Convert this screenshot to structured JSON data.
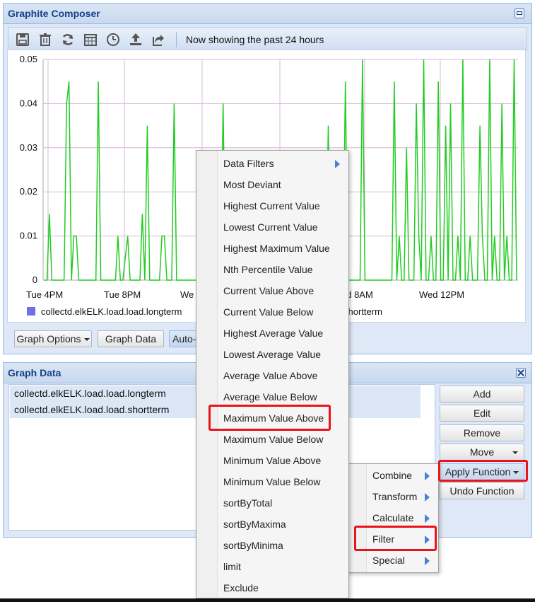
{
  "composer": {
    "title": "Graphite Composer",
    "status_text": "Now showing the past 24 hours",
    "toolbar_icons": [
      "save-icon",
      "trash-icon",
      "refresh-icon",
      "calendar-icon",
      "clock-icon",
      "upload-icon",
      "share-icon"
    ]
  },
  "chart_data": {
    "type": "line",
    "y_ticks": [
      "0.05",
      "0.04",
      "0.03",
      "0.02",
      "0.01",
      "0"
    ],
    "ylim": [
      0,
      0.05
    ],
    "x_ticks_visible": [
      "Tue  4PM",
      "Tue  8PM",
      "We",
      "ed  8AM",
      "Wed 12PM"
    ],
    "grid": true,
    "series": [
      {
        "name": "collectd.elkELK.load.load.longterm",
        "color": "#6f6fe6"
      },
      {
        "name": "collectd.elkELK.load.load.shortterm",
        "color": "#22cc22",
        "values": [
          0,
          0,
          0.015,
          0,
          0,
          0,
          0,
          0,
          0,
          0.04,
          0.045,
          0,
          0.01,
          0.01,
          0,
          0,
          0,
          0,
          0,
          0,
          0,
          0,
          0.045,
          0,
          0,
          0,
          0,
          0,
          0,
          0,
          0.01,
          0,
          0,
          0.005,
          0.01,
          0,
          0,
          0,
          0,
          0,
          0.015,
          0,
          0.035,
          0,
          0,
          0,
          0,
          0,
          0.01,
          0.01,
          0,
          0,
          0,
          0.04,
          0,
          0,
          0,
          0,
          0,
          0,
          0,
          0,
          0,
          0,
          0,
          0.01,
          0,
          0,
          0,
          0,
          0,
          0,
          0,
          0.04,
          0,
          0,
          0,
          0,
          0,
          0,
          0,
          0,
          0,
          0,
          0,
          0,
          0,
          0,
          0,
          0,
          0,
          0,
          0,
          0,
          0,
          0,
          0,
          0,
          0,
          0,
          0,
          0,
          0,
          0,
          0,
          0,
          0,
          0,
          0,
          0,
          0,
          0,
          0,
          0,
          0,
          0,
          0.035,
          0,
          0,
          0,
          0,
          0,
          0,
          0.045,
          0,
          0,
          0,
          0,
          0,
          0,
          0.05,
          0,
          0,
          0,
          0,
          0,
          0,
          0,
          0,
          0,
          0,
          0,
          0,
          0.045,
          0,
          0.01,
          0,
          0,
          0.03,
          0,
          0,
          0,
          0.04,
          0.01,
          0,
          0.05,
          0,
          0,
          0.01,
          0,
          0,
          0.045,
          0,
          0,
          0.035,
          0,
          0.04,
          0,
          0,
          0.01,
          0,
          0.05,
          0,
          0,
          0.01,
          0,
          0,
          0,
          0.035,
          0.01,
          0,
          0,
          0.05,
          0,
          0.01,
          0,
          0,
          0.04,
          0,
          0.01,
          0,
          0,
          0.05,
          0
        ]
      }
    ],
    "legend_visible": [
      "collectd.elkELK.load.load.longterm",
      "shortterm"
    ]
  },
  "graph_buttons": {
    "options": "Graph Options",
    "data": "Graph Data",
    "auto": "Auto-"
  },
  "graph_data_panel": {
    "title": "Graph Data",
    "targets": [
      "collectd.elkELK.load.load.longterm",
      "collectd.elkELK.load.load.shortterm"
    ],
    "buttons": {
      "add": "Add",
      "edit": "Edit",
      "remove": "Remove",
      "move": "Move",
      "apply_function": "Apply Function",
      "undo_function": "Undo Function"
    }
  },
  "function_menu": {
    "items": [
      "Combine",
      "Transform",
      "Calculate",
      "Filter",
      "Special"
    ]
  },
  "filter_menu": {
    "items": [
      "Data Filters",
      "Most Deviant",
      "Highest Current Value",
      "Lowest Current Value",
      "Highest Maximum Value",
      "Nth Percentile Value",
      "Current Value Above",
      "Current Value Below",
      "Highest Average Value",
      "Lowest Average Value",
      "Average Value Above",
      "Average Value Below",
      "Maximum Value Above",
      "Maximum Value Below",
      "Minimum Value Above",
      "Minimum Value Below",
      "sortByTotal",
      "sortByMaxima",
      "sortByMinima",
      "limit",
      "Exclude"
    ]
  }
}
